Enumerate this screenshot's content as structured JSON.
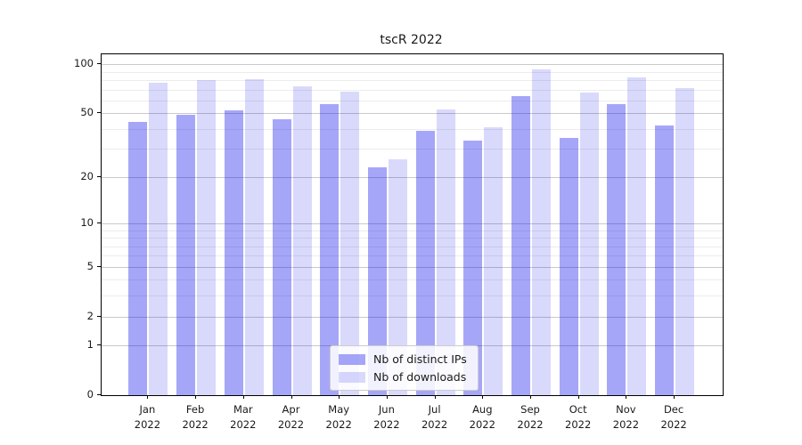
{
  "title": "tscR 2022",
  "colors": {
    "distinct_ips_bar": "#a7a7f7",
    "downloads_bar": "#dadafa",
    "distinct_ips_rgba": "rgba(0,0,235,0.35)",
    "downloads_rgba": "rgba(0,0,235,0.15)",
    "grid_major": "#c9c9c9",
    "grid_minor": "#ececec",
    "axis": "#000000"
  },
  "axes": {
    "y_major_ticks": [
      0,
      1,
      2,
      5,
      10,
      20,
      50,
      100
    ],
    "y_minor_ticks": [
      3,
      4,
      6,
      7,
      8,
      9,
      30,
      40,
      60,
      70,
      80,
      90
    ],
    "y_scale": "log10(value+1)",
    "y_view_max": 115,
    "months": [
      "Jan",
      "Feb",
      "Mar",
      "Apr",
      "May",
      "Jun",
      "Jul",
      "Aug",
      "Sep",
      "Oct",
      "Nov",
      "Dec"
    ],
    "year": "2022"
  },
  "legend": {
    "items": [
      {
        "label": "Nb of distinct IPs",
        "color": "rgba(0,0,235,0.35)"
      },
      {
        "label": "Nb of downloads",
        "color": "rgba(0,0,235,0.15)"
      }
    ]
  },
  "chart_data": {
    "type": "bar",
    "title": "tscR 2022",
    "categories": [
      "Jan 2022",
      "Feb 2022",
      "Mar 2022",
      "Apr 2022",
      "May 2022",
      "Jun 2022",
      "Jul 2022",
      "Aug 2022",
      "Sep 2022",
      "Oct 2022",
      "Nov 2022",
      "Dec 2022"
    ],
    "series": [
      {
        "name": "Nb of distinct IPs",
        "values": [
          44,
          49,
          52,
          46,
          57,
          23,
          39,
          34,
          64,
          35,
          57,
          42
        ]
      },
      {
        "name": "Nb of downloads",
        "values": [
          77,
          80,
          81,
          73,
          68,
          26,
          53,
          41,
          93,
          67,
          83,
          71
        ]
      }
    ],
    "ylabel": "",
    "xlabel": "",
    "ylim": [
      0,
      115
    ],
    "yscale": "symlog-log1p",
    "grid": true,
    "legend_position": "lower center"
  }
}
